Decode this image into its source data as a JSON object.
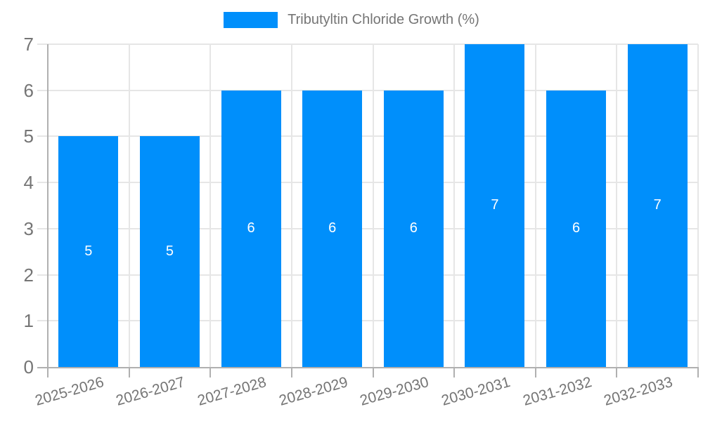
{
  "chart_data": {
    "type": "bar",
    "title": "",
    "legend": {
      "label": "Tributyltin Chloride Growth (%)",
      "position": "top"
    },
    "categories": [
      "2025-2026",
      "2026-2027",
      "2027-2028",
      "2028-2029",
      "2029-2030",
      "2030-2031",
      "2031-2032",
      "2032-2033"
    ],
    "series": [
      {
        "name": "Tributyltin Chloride Growth (%)",
        "values": [
          5,
          5,
          6,
          6,
          6,
          7,
          6,
          7
        ]
      }
    ],
    "value_labels": [
      "5",
      "5",
      "6",
      "6",
      "6",
      "7",
      "6",
      "7"
    ],
    "xlabel": "",
    "ylabel": "",
    "ylim": [
      0,
      7
    ],
    "yticks": [
      "0",
      "1",
      "2",
      "3",
      "4",
      "5",
      "6",
      "7"
    ],
    "grid": "horizontal and vertical gridlines on",
    "colors": {
      "bar": "#008FFB",
      "value_label": "#ffffff",
      "axis_text": "#757575",
      "legend_text": "#757575",
      "gridline": "#e6e6e6",
      "axis_line": "#b0b0b0",
      "background": "#ffffff"
    }
  }
}
